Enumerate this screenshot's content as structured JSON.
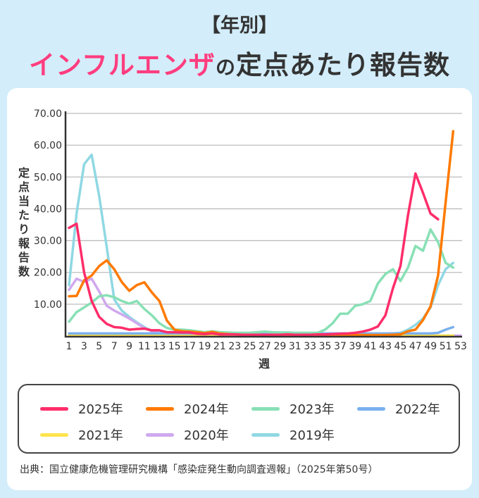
{
  "title": {
    "line1": "【年別】",
    "highlight": "インフルエンザ",
    "particle": "の",
    "rest": "定点あたり報告数"
  },
  "source": "出典：国立健康危機管理研究機構「感染症発生動向調査週報」（2025年第50号）",
  "chart_data": {
    "type": "line",
    "xlabel": "週",
    "ylabel": "定点当たり報告数",
    "ylim": [
      0,
      70
    ],
    "xlim": [
      1,
      53
    ],
    "yticks": [
      "10.00",
      "20.00",
      "30.00",
      "40.00",
      "50.00",
      "60.00",
      "70.00"
    ],
    "xticks": [
      "1",
      "3",
      "5",
      "7",
      "9",
      "11",
      "13",
      "15",
      "17",
      "19",
      "21",
      "23",
      "25",
      "27",
      "29",
      "31",
      "33",
      "35",
      "37",
      "39",
      "41",
      "43",
      "45",
      "47",
      "49",
      "51",
      "53"
    ],
    "grid": true,
    "legend_position": "bottom",
    "series": [
      {
        "name": "2025年",
        "color": "#ff2d6a",
        "values": [
          34,
          35.3,
          20,
          11,
          6,
          3.8,
          2.8,
          2.6,
          2,
          2.2,
          2.3,
          1.8,
          1.8,
          1.2,
          1.2,
          1.1,
          1.1,
          0.7,
          0.6,
          0.8,
          0.5,
          0.5,
          0.5,
          0.4,
          0.4,
          0.4,
          0.4,
          0.4,
          0.4,
          0.5,
          0.4,
          0.4,
          0.4,
          0.5,
          0.5,
          0.6,
          0.7,
          0.8,
          1,
          1.4,
          2,
          3,
          6.5,
          15,
          22,
          38,
          51.1,
          45,
          38.5,
          36.7
        ]
      },
      {
        "name": "2024年",
        "color": "#ff7a00",
        "values": [
          12.5,
          12.6,
          17.5,
          19,
          22,
          23.8,
          21,
          17,
          14.2,
          16,
          16.9,
          13.7,
          11,
          4.8,
          2,
          1.5,
          1.4,
          1.2,
          0.9,
          1.3,
          0.8,
          0.6,
          0.5,
          0.4,
          0.4,
          0.3,
          0.3,
          0.3,
          0.3,
          0.3,
          0.3,
          0.3,
          0.3,
          0.3,
          0.3,
          0.3,
          0.3,
          0.3,
          0.3,
          0.3,
          0.3,
          0.3,
          0.3,
          0.4,
          0.5,
          1.5,
          2,
          5,
          9.3,
          19,
          42,
          64.4
        ]
      },
      {
        "name": "2023年",
        "color": "#88e0b5",
        "values": [
          4.5,
          7.5,
          9,
          10.5,
          12.5,
          12.8,
          12.2,
          11,
          10.2,
          11,
          8.5,
          6.5,
          4,
          2.5,
          2,
          2,
          1.8,
          1.5,
          1.2,
          1.5,
          1.2,
          1.1,
          1,
          1,
          1,
          1.2,
          1.4,
          1.2,
          1.1,
          1.1,
          1,
          1,
          1,
          1,
          2,
          4,
          7,
          7,
          9.5,
          10,
          11,
          16.5,
          19.5,
          21,
          17.3,
          21.5,
          28.3,
          26.8,
          33.5,
          29.5,
          23,
          21.5
        ]
      },
      {
        "name": "2022年",
        "color": "#7ab0ee",
        "values": [
          0.8,
          0.8,
          0.8,
          0.8,
          0.8,
          0.8,
          0.8,
          0.8,
          0.8,
          0.8,
          0.8,
          0.8,
          0.8,
          0.8,
          0.8,
          0.8,
          0.8,
          0.8,
          0.8,
          0.8,
          0.8,
          0.8,
          0.8,
          0.8,
          0.8,
          0.8,
          0.8,
          0.8,
          0.8,
          0.8,
          0.8,
          0.8,
          0.8,
          0.8,
          0.8,
          0.8,
          0.8,
          0.8,
          0.8,
          0.8,
          0.8,
          0.8,
          0.8,
          0.8,
          0.8,
          0.8,
          0.8,
          0.8,
          0.8,
          1,
          2,
          2.8
        ]
      },
      {
        "name": "2021年",
        "color": "#ffe44d",
        "values": [
          0.1,
          0.1,
          0.1,
          0.1,
          0.1,
          0.1,
          0.1,
          0.1,
          0.1,
          0.1,
          0.1,
          0.1,
          0.1,
          0.1,
          0.1,
          0.1,
          0.1,
          0.1,
          0.1,
          0.1,
          0.1,
          0.1,
          0.1,
          0.1,
          0.1,
          0.1,
          0.1,
          0.1,
          0.1,
          0.1,
          0.1,
          0.1,
          0.1,
          0.1,
          0.1,
          0.1,
          0.1,
          0.1,
          0.1,
          0.1,
          0.1,
          0.1,
          0.1,
          0.1,
          0.1,
          0.1,
          0.1,
          0.1,
          0.1,
          0.1,
          0.1,
          0.1
        ]
      },
      {
        "name": "2020年",
        "color": "#d0a8ee",
        "values": [
          14.5,
          18,
          17,
          18,
          14,
          9.5,
          8,
          6.8,
          5.5,
          4,
          2.5,
          1.5,
          0.8,
          0.5,
          0.3,
          0.2,
          0.1,
          0.1,
          0.1,
          0.1,
          0.1,
          0.1,
          0.1,
          0.1,
          0.1,
          0.1,
          0.1,
          0.1,
          0.1,
          0.1,
          0.1,
          0.1,
          0.1,
          0.1,
          0.1,
          0.1,
          0.1,
          0.1,
          0.1,
          0.1,
          0.1,
          0.1,
          0.1,
          0.1,
          0.1,
          0.1,
          0.1,
          0.1,
          0.1,
          0.1,
          0.1,
          0.1,
          0.1
        ]
      },
      {
        "name": "2019年",
        "color": "#8fd8e3",
        "values": [
          16,
          38.5,
          54,
          57,
          44,
          28,
          11.5,
          8,
          6,
          4.3,
          2.8,
          1.5,
          1,
          0.7,
          0.5,
          0.5,
          0.4,
          0.3,
          0.3,
          0.3,
          0.3,
          0.3,
          0.3,
          0.3,
          0.3,
          0.3,
          0.3,
          0.3,
          0.3,
          0.3,
          0.3,
          0.3,
          0.3,
          0.3,
          0.3,
          0.3,
          0.3,
          0.3,
          0.3,
          0.4,
          0.5,
          0.6,
          0.7,
          0.8,
          1,
          2,
          3.5,
          5.5,
          9,
          16,
          21,
          23
        ]
      }
    ]
  }
}
